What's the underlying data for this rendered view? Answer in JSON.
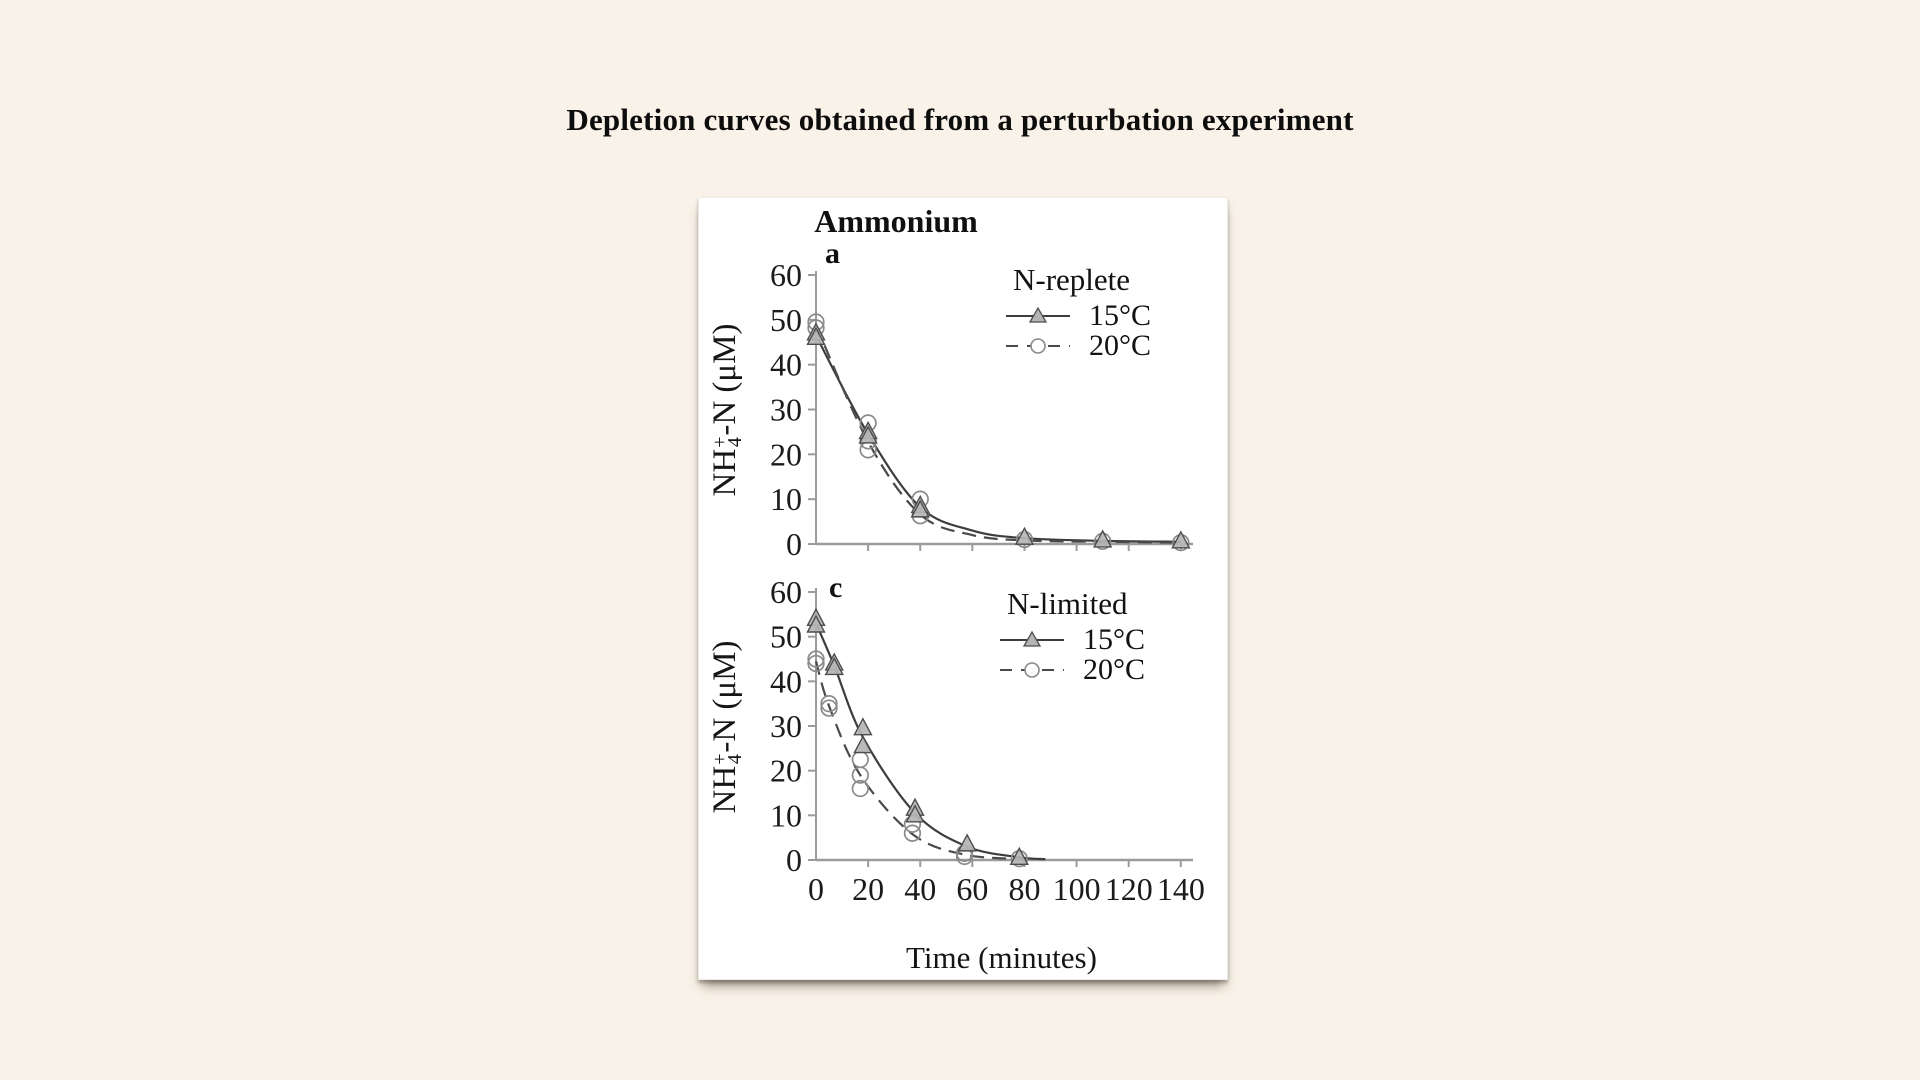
{
  "page": {
    "title": "Depletion curves obtained from a perturbation experiment",
    "background_color": "#f9f2e8",
    "panel_color": "#ffffff"
  },
  "figure": {
    "xlabel": "Time (minutes)",
    "ylabel": {
      "pre": "NH",
      "sub": "4",
      "sup": "+",
      "post": "-N (μM)"
    }
  },
  "colors": {
    "axis": "#9b9b9b",
    "line_solid": "#3d3d3d",
    "line_dashed": "#4a4a4a",
    "triangle_fill": "#b5b5b5",
    "triangle_stroke": "#4d4d4d",
    "circle_stroke": "#8a8a8a",
    "text": "#141414"
  },
  "chart_data": [
    {
      "type": "scatter",
      "panel_label": "a",
      "title": "Ammonium",
      "xlabel": "Time (minutes)",
      "ylabel": "NH4+-N (μM)",
      "xlim": [
        0,
        145
      ],
      "ylim": [
        0,
        60
      ],
      "xticks": [
        0,
        20,
        40,
        60,
        80,
        100,
        120,
        140
      ],
      "yticks": [
        0,
        10,
        20,
        30,
        40,
        50,
        60
      ],
      "xtick_labels_shown": false,
      "grid": false,
      "legend": {
        "title": "N-replete",
        "position": "top-right"
      },
      "series": [
        {
          "name": "15°C",
          "marker": "triangle",
          "line": "solid",
          "points": [
            [
              0,
              47
            ],
            [
              0,
              46
            ],
            [
              20,
              25
            ],
            [
              20,
              24
            ],
            [
              40,
              8.5
            ],
            [
              40,
              7.5
            ],
            [
              80,
              1.4
            ],
            [
              110,
              0.8
            ],
            [
              140,
              0.6
            ]
          ],
          "fit_curve": [
            [
              0,
              46.5
            ],
            [
              20,
              24.5
            ],
            [
              40,
              8.2
            ],
            [
              60,
              3
            ],
            [
              80,
              1.3
            ],
            [
              110,
              0.7
            ],
            [
              140,
              0.5
            ]
          ]
        },
        {
          "name": "20°C",
          "marker": "circle",
          "line": "dashed",
          "points": [
            [
              0,
              49.5
            ],
            [
              0,
              48.2
            ],
            [
              20,
              27
            ],
            [
              20,
              23
            ],
            [
              20,
              21
            ],
            [
              40,
              10
            ],
            [
              40,
              6.3
            ],
            [
              80,
              1
            ],
            [
              110,
              0.6
            ],
            [
              140,
              0.3
            ]
          ],
          "fit_curve": [
            [
              0,
              48.8
            ],
            [
              20,
              22.8
            ],
            [
              40,
              6.6
            ],
            [
              60,
              2
            ],
            [
              80,
              0.8
            ],
            [
              110,
              0.5
            ],
            [
              140,
              0.3
            ]
          ]
        }
      ]
    },
    {
      "type": "scatter",
      "panel_label": "c",
      "title": "",
      "xlabel": "Time (minutes)",
      "ylabel": "NH4+-N (μM)",
      "xlim": [
        0,
        145
      ],
      "ylim": [
        0,
        60
      ],
      "xticks": [
        0,
        20,
        40,
        60,
        80,
        100,
        120,
        140
      ],
      "yticks": [
        0,
        10,
        20,
        30,
        40,
        50,
        60
      ],
      "xtick_labels_shown": true,
      "grid": false,
      "legend": {
        "title": "N-limited",
        "position": "top-right"
      },
      "series": [
        {
          "name": "15°C",
          "marker": "triangle",
          "line": "solid",
          "points": [
            [
              0,
              54
            ],
            [
              0,
              52.5
            ],
            [
              7,
              44
            ],
            [
              7,
              43
            ],
            [
              18,
              29.5
            ],
            [
              18,
              25.5
            ],
            [
              38,
              11.5
            ],
            [
              38,
              10
            ],
            [
              58,
              3.5
            ],
            [
              78,
              0.5
            ]
          ],
          "fit_curve": [
            [
              0,
              53
            ],
            [
              7,
              43.5
            ],
            [
              18,
              27.5
            ],
            [
              38,
              10.5
            ],
            [
              58,
              3
            ],
            [
              78,
              0.6
            ],
            [
              88,
              0.2
            ]
          ]
        },
        {
          "name": "20°C",
          "marker": "circle",
          "line": "dashed",
          "points": [
            [
              0,
              45
            ],
            [
              0,
              44
            ],
            [
              5,
              35
            ],
            [
              5,
              34
            ],
            [
              17,
              22.5
            ],
            [
              17,
              19
            ],
            [
              17,
              16
            ],
            [
              37,
              8
            ],
            [
              37,
              6
            ],
            [
              57,
              1.5
            ],
            [
              57,
              0.8
            ],
            [
              78,
              0.3
            ]
          ],
          "fit_curve": [
            [
              0,
              44.5
            ],
            [
              5,
              34.5
            ],
            [
              17,
              19
            ],
            [
              37,
              5.8
            ],
            [
              57,
              1.2
            ],
            [
              80,
              0.2
            ]
          ]
        }
      ]
    }
  ]
}
